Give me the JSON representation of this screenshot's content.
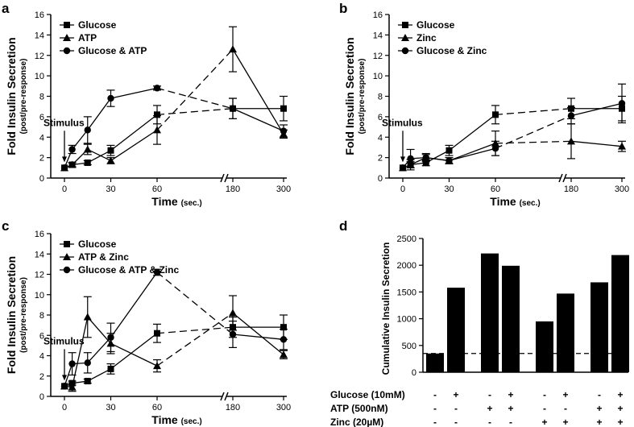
{
  "chart_data": [
    {
      "type": "line",
      "panel": "a",
      "ylabel": "Fold Insulin Secretion",
      "ylabel_sub": "(post/pre-response)",
      "xlabel": "Time",
      "xlabel_unit": "(sec.)",
      "ylim": [
        0,
        16
      ],
      "yticks": [
        0,
        2,
        4,
        6,
        8,
        10,
        12,
        14,
        16
      ],
      "xticks": [
        0,
        30,
        60,
        180,
        300
      ],
      "annotation": "Stimulus",
      "series": [
        {
          "name": "Glucose",
          "marker": "square",
          "x": [
            0,
            5,
            15,
            30,
            60,
            180,
            300
          ],
          "y": [
            1.0,
            1.3,
            1.5,
            2.7,
            6.2,
            6.8,
            6.8
          ],
          "err": [
            0,
            0.2,
            0.2,
            0.5,
            0.9,
            1.0,
            1.2
          ]
        },
        {
          "name": "ATP",
          "marker": "triangle",
          "x": [
            0,
            5,
            15,
            30,
            60,
            180,
            300
          ],
          "y": [
            1.0,
            1.3,
            2.8,
            1.7,
            4.7,
            12.6,
            4.3
          ],
          "err": [
            0,
            0.2,
            0.5,
            0.3,
            1.4,
            2.2,
            0.4
          ]
        },
        {
          "name": "Glucose & ATP",
          "marker": "circle",
          "x": [
            0,
            5,
            15,
            30,
            60,
            180,
            300
          ],
          "y": [
            1.0,
            2.8,
            4.7,
            7.8,
            8.8,
            6.8,
            4.6
          ],
          "err": [
            0,
            0.4,
            1.3,
            0.8,
            0.2,
            1.0,
            0.6
          ]
        }
      ]
    },
    {
      "type": "line",
      "panel": "b",
      "ylabel": "Fold Insulin Secretion",
      "ylabel_sub": "(post/pre-response)",
      "xlabel": "Time",
      "xlabel_unit": "(sec.)",
      "ylim": [
        0,
        16
      ],
      "yticks": [
        0,
        2,
        4,
        6,
        8,
        10,
        12,
        14,
        16
      ],
      "xticks": [
        0,
        30,
        60,
        180,
        300
      ],
      "annotation": "Stimulus",
      "series": [
        {
          "name": "Glucose",
          "marker": "square",
          "x": [
            0,
            5,
            15,
            30,
            60,
            180,
            300
          ],
          "y": [
            1.0,
            1.3,
            1.5,
            2.7,
            6.2,
            6.8,
            6.8
          ],
          "err": [
            0,
            0.3,
            0.3,
            0.5,
            0.9,
            1.0,
            1.2
          ]
        },
        {
          "name": "Zinc",
          "marker": "triangle",
          "x": [
            0,
            5,
            15,
            30,
            60,
            180,
            300
          ],
          "y": [
            1.0,
            1.3,
            2.0,
            1.7,
            3.4,
            3.6,
            3.1
          ],
          "err": [
            0,
            0.5,
            0.3,
            0.3,
            1.2,
            1.7,
            0.5
          ]
        },
        {
          "name": "Glucose & Zinc",
          "marker": "circle",
          "x": [
            0,
            5,
            15,
            30,
            60,
            180,
            300
          ],
          "y": [
            1.0,
            1.9,
            2.0,
            1.7,
            2.9,
            6.1,
            7.3
          ],
          "err": [
            0,
            0.9,
            0.4,
            0.3,
            0.7,
            0.8,
            1.9
          ]
        }
      ]
    },
    {
      "type": "line",
      "panel": "c",
      "ylabel": "Fold Insulin Secretion",
      "ylabel_sub": "(post/pre-response)",
      "xlabel": "Time",
      "xlabel_unit": "(sec.)",
      "ylim": [
        0,
        16
      ],
      "yticks": [
        0,
        2,
        4,
        6,
        8,
        10,
        12,
        14,
        16
      ],
      "xticks": [
        0,
        30,
        60,
        180,
        300
      ],
      "annotation": "Stimulus",
      "series": [
        {
          "name": "Glucose",
          "marker": "square",
          "x": [
            0,
            5,
            15,
            30,
            60,
            180,
            300
          ],
          "y": [
            1.0,
            1.3,
            1.5,
            2.7,
            6.2,
            6.8,
            6.8
          ],
          "err": [
            0,
            0.2,
            0.2,
            0.5,
            0.9,
            1.0,
            1.2
          ]
        },
        {
          "name": "ATP & Zinc",
          "marker": "triangle",
          "x": [
            0,
            5,
            15,
            30,
            60,
            180,
            300
          ],
          "y": [
            1.0,
            0.9,
            7.8,
            5.2,
            3.0,
            8.2,
            4.1
          ],
          "err": [
            0,
            0.4,
            2.0,
            1.0,
            0.6,
            1.7,
            0.4
          ]
        },
        {
          "name": "Glucose & ATP & Zinc",
          "marker": "circle",
          "x": [
            0,
            5,
            15,
            30,
            60,
            180,
            300
          ],
          "y": [
            1.0,
            3.2,
            3.3,
            5.8,
            12.2,
            6.1,
            5.6
          ],
          "err": [
            0,
            1.1,
            1.0,
            1.4,
            0.3,
            1.3,
            1.0
          ]
        }
      ]
    },
    {
      "type": "bar",
      "panel": "d",
      "ylabel": "Cumulative Insulin Secretion",
      "ylim": [
        0,
        2500
      ],
      "yticks": [
        0,
        500,
        1000,
        1500,
        2000,
        2500
      ],
      "baseline_value": 350,
      "values": [
        350,
        1580,
        2220,
        1990,
        950,
        1470,
        1680,
        2190
      ],
      "groups": [
        [
          0,
          1
        ],
        [
          2,
          3
        ],
        [
          4,
          5
        ],
        [
          6,
          7
        ]
      ],
      "conditions": [
        {
          "label": "Glucose (10mM)",
          "signs": [
            "-",
            "+",
            "-",
            "+",
            "-",
            "+",
            "-",
            "+"
          ]
        },
        {
          "label": "ATP (500nM)",
          "signs": [
            "-",
            "-",
            "+",
            "+",
            "-",
            "-",
            "+",
            "+"
          ]
        },
        {
          "label": "Zinc (20µM)",
          "signs": [
            "-",
            "-",
            "-",
            "-",
            "+",
            "+",
            "+",
            "+"
          ]
        }
      ]
    }
  ]
}
